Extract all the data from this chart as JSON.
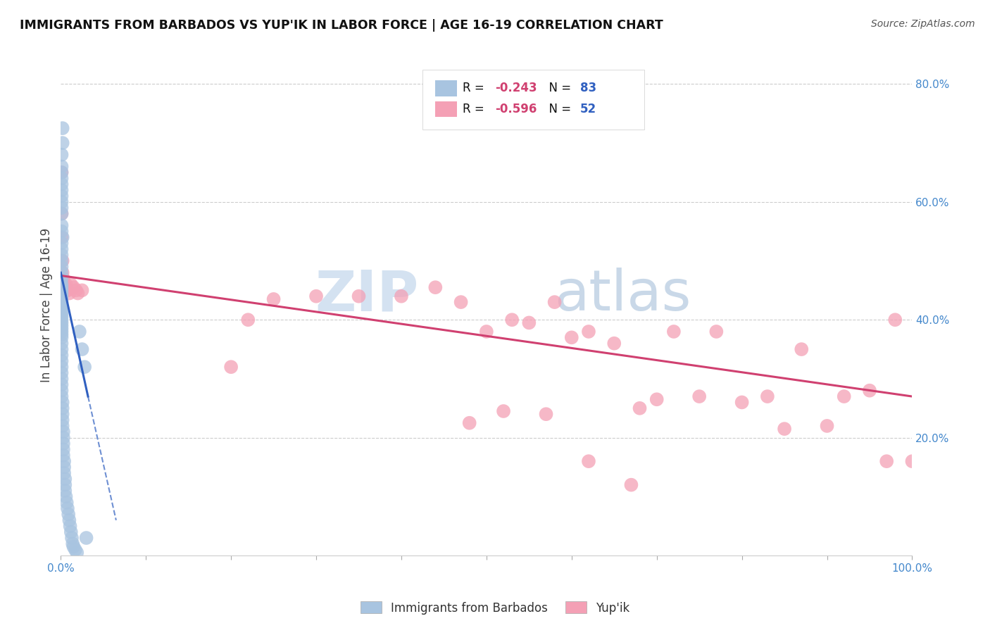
{
  "title": "IMMIGRANTS FROM BARBADOS VS YUP'IK IN LABOR FORCE | AGE 16-19 CORRELATION CHART",
  "source": "Source: ZipAtlas.com",
  "ylabel": "In Labor Force | Age 16-19",
  "xlim": [
    0.0,
    1.0
  ],
  "ylim": [
    0.0,
    0.85
  ],
  "x_tick_positions": [
    0.0,
    0.1,
    0.2,
    0.3,
    0.4,
    0.5,
    0.6,
    0.7,
    0.8,
    0.9,
    1.0
  ],
  "x_tick_labels_show": {
    "0.0": "0.0%",
    "1.0": "100.0%"
  },
  "y_ticks_right": [
    0.2,
    0.4,
    0.6,
    0.8
  ],
  "y_tick_labels_right": [
    "20.0%",
    "40.0%",
    "60.0%",
    "80.0%"
  ],
  "legend_labels": [
    "Immigrants from Barbados",
    "Yup'ik"
  ],
  "R_barbados": -0.243,
  "N_barbados": 83,
  "R_yupik": -0.596,
  "N_yupik": 52,
  "color_barbados": "#a8c4e0",
  "color_yupik": "#f4a0b5",
  "trendline_barbados_color": "#3060c0",
  "trendline_yupik_color": "#d04070",
  "background_color": "#ffffff",
  "grid_color": "#cccccc",
  "watermark_zip": "ZIP",
  "watermark_atlas": "atlas",
  "right_tick_color": "#4488cc",
  "bottom_tick_color": "#4488cc",
  "barbados_x": [
    0.002,
    0.002,
    0.001,
    0.001,
    0.001,
    0.001,
    0.001,
    0.001,
    0.001,
    0.001,
    0.001,
    0.001,
    0.001,
    0.001,
    0.002,
    0.001,
    0.001,
    0.001,
    0.001,
    0.001,
    0.001,
    0.001,
    0.001,
    0.001,
    0.001,
    0.001,
    0.001,
    0.001,
    0.001,
    0.001,
    0.001,
    0.001,
    0.001,
    0.001,
    0.001,
    0.001,
    0.001,
    0.001,
    0.001,
    0.001,
    0.001,
    0.001,
    0.001,
    0.001,
    0.001,
    0.001,
    0.001,
    0.001,
    0.001,
    0.001,
    0.001,
    0.002,
    0.002,
    0.002,
    0.002,
    0.002,
    0.003,
    0.003,
    0.003,
    0.003,
    0.003,
    0.004,
    0.004,
    0.004,
    0.005,
    0.005,
    0.005,
    0.006,
    0.007,
    0.008,
    0.009,
    0.01,
    0.011,
    0.012,
    0.013,
    0.014,
    0.015,
    0.017,
    0.019,
    0.022,
    0.025,
    0.028,
    0.03
  ],
  "barbados_y": [
    0.725,
    0.7,
    0.68,
    0.66,
    0.65,
    0.64,
    0.63,
    0.62,
    0.61,
    0.6,
    0.59,
    0.58,
    0.56,
    0.55,
    0.54,
    0.53,
    0.52,
    0.51,
    0.5,
    0.49,
    0.48,
    0.47,
    0.46,
    0.455,
    0.45,
    0.445,
    0.44,
    0.435,
    0.43,
    0.425,
    0.42,
    0.415,
    0.41,
    0.405,
    0.4,
    0.395,
    0.39,
    0.385,
    0.38,
    0.375,
    0.37,
    0.36,
    0.35,
    0.34,
    0.33,
    0.32,
    0.31,
    0.3,
    0.29,
    0.28,
    0.27,
    0.26,
    0.25,
    0.24,
    0.23,
    0.22,
    0.21,
    0.2,
    0.19,
    0.18,
    0.17,
    0.16,
    0.15,
    0.14,
    0.13,
    0.12,
    0.11,
    0.1,
    0.09,
    0.08,
    0.07,
    0.06,
    0.05,
    0.04,
    0.03,
    0.02,
    0.015,
    0.01,
    0.005,
    0.38,
    0.35,
    0.32,
    0.03
  ],
  "yupik_x": [
    0.001,
    0.001,
    0.001,
    0.002,
    0.002,
    0.003,
    0.004,
    0.005,
    0.006,
    0.007,
    0.008,
    0.01,
    0.012,
    0.015,
    0.018,
    0.02,
    0.025,
    0.2,
    0.22,
    0.25,
    0.3,
    0.35,
    0.4,
    0.44,
    0.47,
    0.5,
    0.53,
    0.55,
    0.58,
    0.6,
    0.62,
    0.65,
    0.68,
    0.7,
    0.72,
    0.75,
    0.77,
    0.8,
    0.83,
    0.85,
    0.87,
    0.9,
    0.92,
    0.95,
    0.97,
    0.98,
    1.0,
    0.48,
    0.52,
    0.57,
    0.62,
    0.67
  ],
  "yupik_y": [
    0.65,
    0.58,
    0.54,
    0.5,
    0.48,
    0.47,
    0.46,
    0.455,
    0.46,
    0.45,
    0.45,
    0.445,
    0.46,
    0.455,
    0.45,
    0.445,
    0.45,
    0.32,
    0.4,
    0.435,
    0.44,
    0.44,
    0.44,
    0.455,
    0.43,
    0.38,
    0.4,
    0.395,
    0.43,
    0.37,
    0.38,
    0.36,
    0.25,
    0.265,
    0.38,
    0.27,
    0.38,
    0.26,
    0.27,
    0.215,
    0.35,
    0.22,
    0.27,
    0.28,
    0.16,
    0.4,
    0.16,
    0.225,
    0.245,
    0.24,
    0.16,
    0.12
  ],
  "trendline_yupik_x0": 0.0,
  "trendline_yupik_x1": 1.0,
  "trendline_yupik_y0": 0.475,
  "trendline_yupik_y1": 0.27,
  "trendline_barb_x0": 0.0,
  "trendline_barb_x1": 0.032,
  "trendline_barb_y0": 0.48,
  "trendline_barb_y1": 0.27,
  "trendline_barb_ext_x0": 0.032,
  "trendline_barb_ext_x1": 0.065,
  "trendline_barb_ext_y0": 0.27,
  "trendline_barb_ext_y1": 0.06
}
